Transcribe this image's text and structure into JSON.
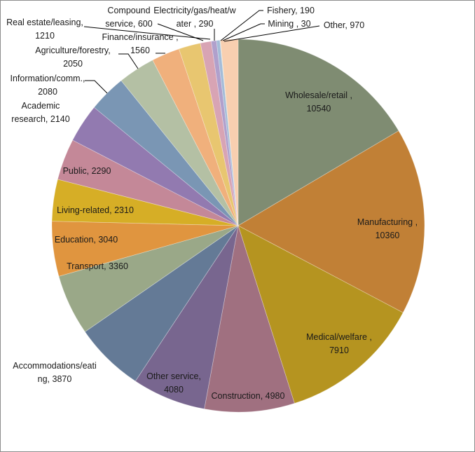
{
  "chart_data": {
    "type": "pie",
    "title": "",
    "start_angle_deg": 0,
    "direction": "clockwise",
    "total": 63890,
    "categories": [
      "Wholesale/retail",
      "Manufacturing",
      "Medical/welfare",
      "Construction",
      "Other service",
      "Accommodations/eating",
      "Transport",
      "Education",
      "Living-related",
      "Public",
      "Academic research",
      "Information/comm.",
      "Agriculture/forestry",
      "Finance/insurance",
      "Real estate/leasing",
      "Compound service",
      "Electricity/gas/heat/water",
      "Fishery",
      "Mining",
      "Other"
    ],
    "values": [
      10540,
      10360,
      7910,
      4980,
      4080,
      3870,
      3360,
      3040,
      2310,
      2290,
      2140,
      2080,
      2050,
      1560,
      1210,
      600,
      290,
      190,
      30,
      970
    ],
    "colors": [
      "#7f8c72",
      "#c18036",
      "#b59420",
      "#a07080",
      "#78668f",
      "#647a96",
      "#9aa888",
      "#e0953f",
      "#d6ae26",
      "#c48898",
      "#927ab0",
      "#7a96b4",
      "#b4c0a4",
      "#f0b07c",
      "#e8c670",
      "#d8a4b4",
      "#b0a0cc",
      "#a4bcd8",
      "#c8d4bc",
      "#f8cfb0"
    ],
    "data_labels": [
      {
        "lines": [
          "Wholesale/retail ,",
          "10540"
        ]
      },
      {
        "lines": [
          "Manufacturing ,",
          "10360"
        ]
      },
      {
        "lines": [
          "Medical/welfare ,",
          "7910"
        ]
      },
      {
        "lines": [
          "Construction, 4980"
        ]
      },
      {
        "lines": [
          "Other service,",
          "4080"
        ]
      },
      {
        "lines": [
          "Accommodations/eati",
          "ng, 3870"
        ]
      },
      {
        "lines": [
          "Transport, 3360"
        ]
      },
      {
        "lines": [
          "Education, 3040"
        ]
      },
      {
        "lines": [
          "Living-related, 2310"
        ]
      },
      {
        "lines": [
          "Public, 2290"
        ]
      },
      {
        "lines": [
          "Academic",
          "research, 2140"
        ]
      },
      {
        "lines": [
          "Information/comm.,",
          "2080"
        ]
      },
      {
        "lines": [
          "Agriculture/forestry,",
          "2050"
        ]
      },
      {
        "lines": [
          "Finance/insurance ,",
          "1560"
        ]
      },
      {
        "lines": [
          "Real estate/leasing,",
          "1210"
        ]
      },
      {
        "lines": [
          "Compound",
          "service, 600"
        ]
      },
      {
        "lines": [
          "Electricity/gas/heat/w",
          "ater , 290"
        ]
      },
      {
        "lines": [
          "Fishery, 190"
        ]
      },
      {
        "lines": [
          "Mining , 30"
        ]
      },
      {
        "lines": [
          "Other, 970"
        ]
      }
    ],
    "legend": "none",
    "grid": false
  }
}
